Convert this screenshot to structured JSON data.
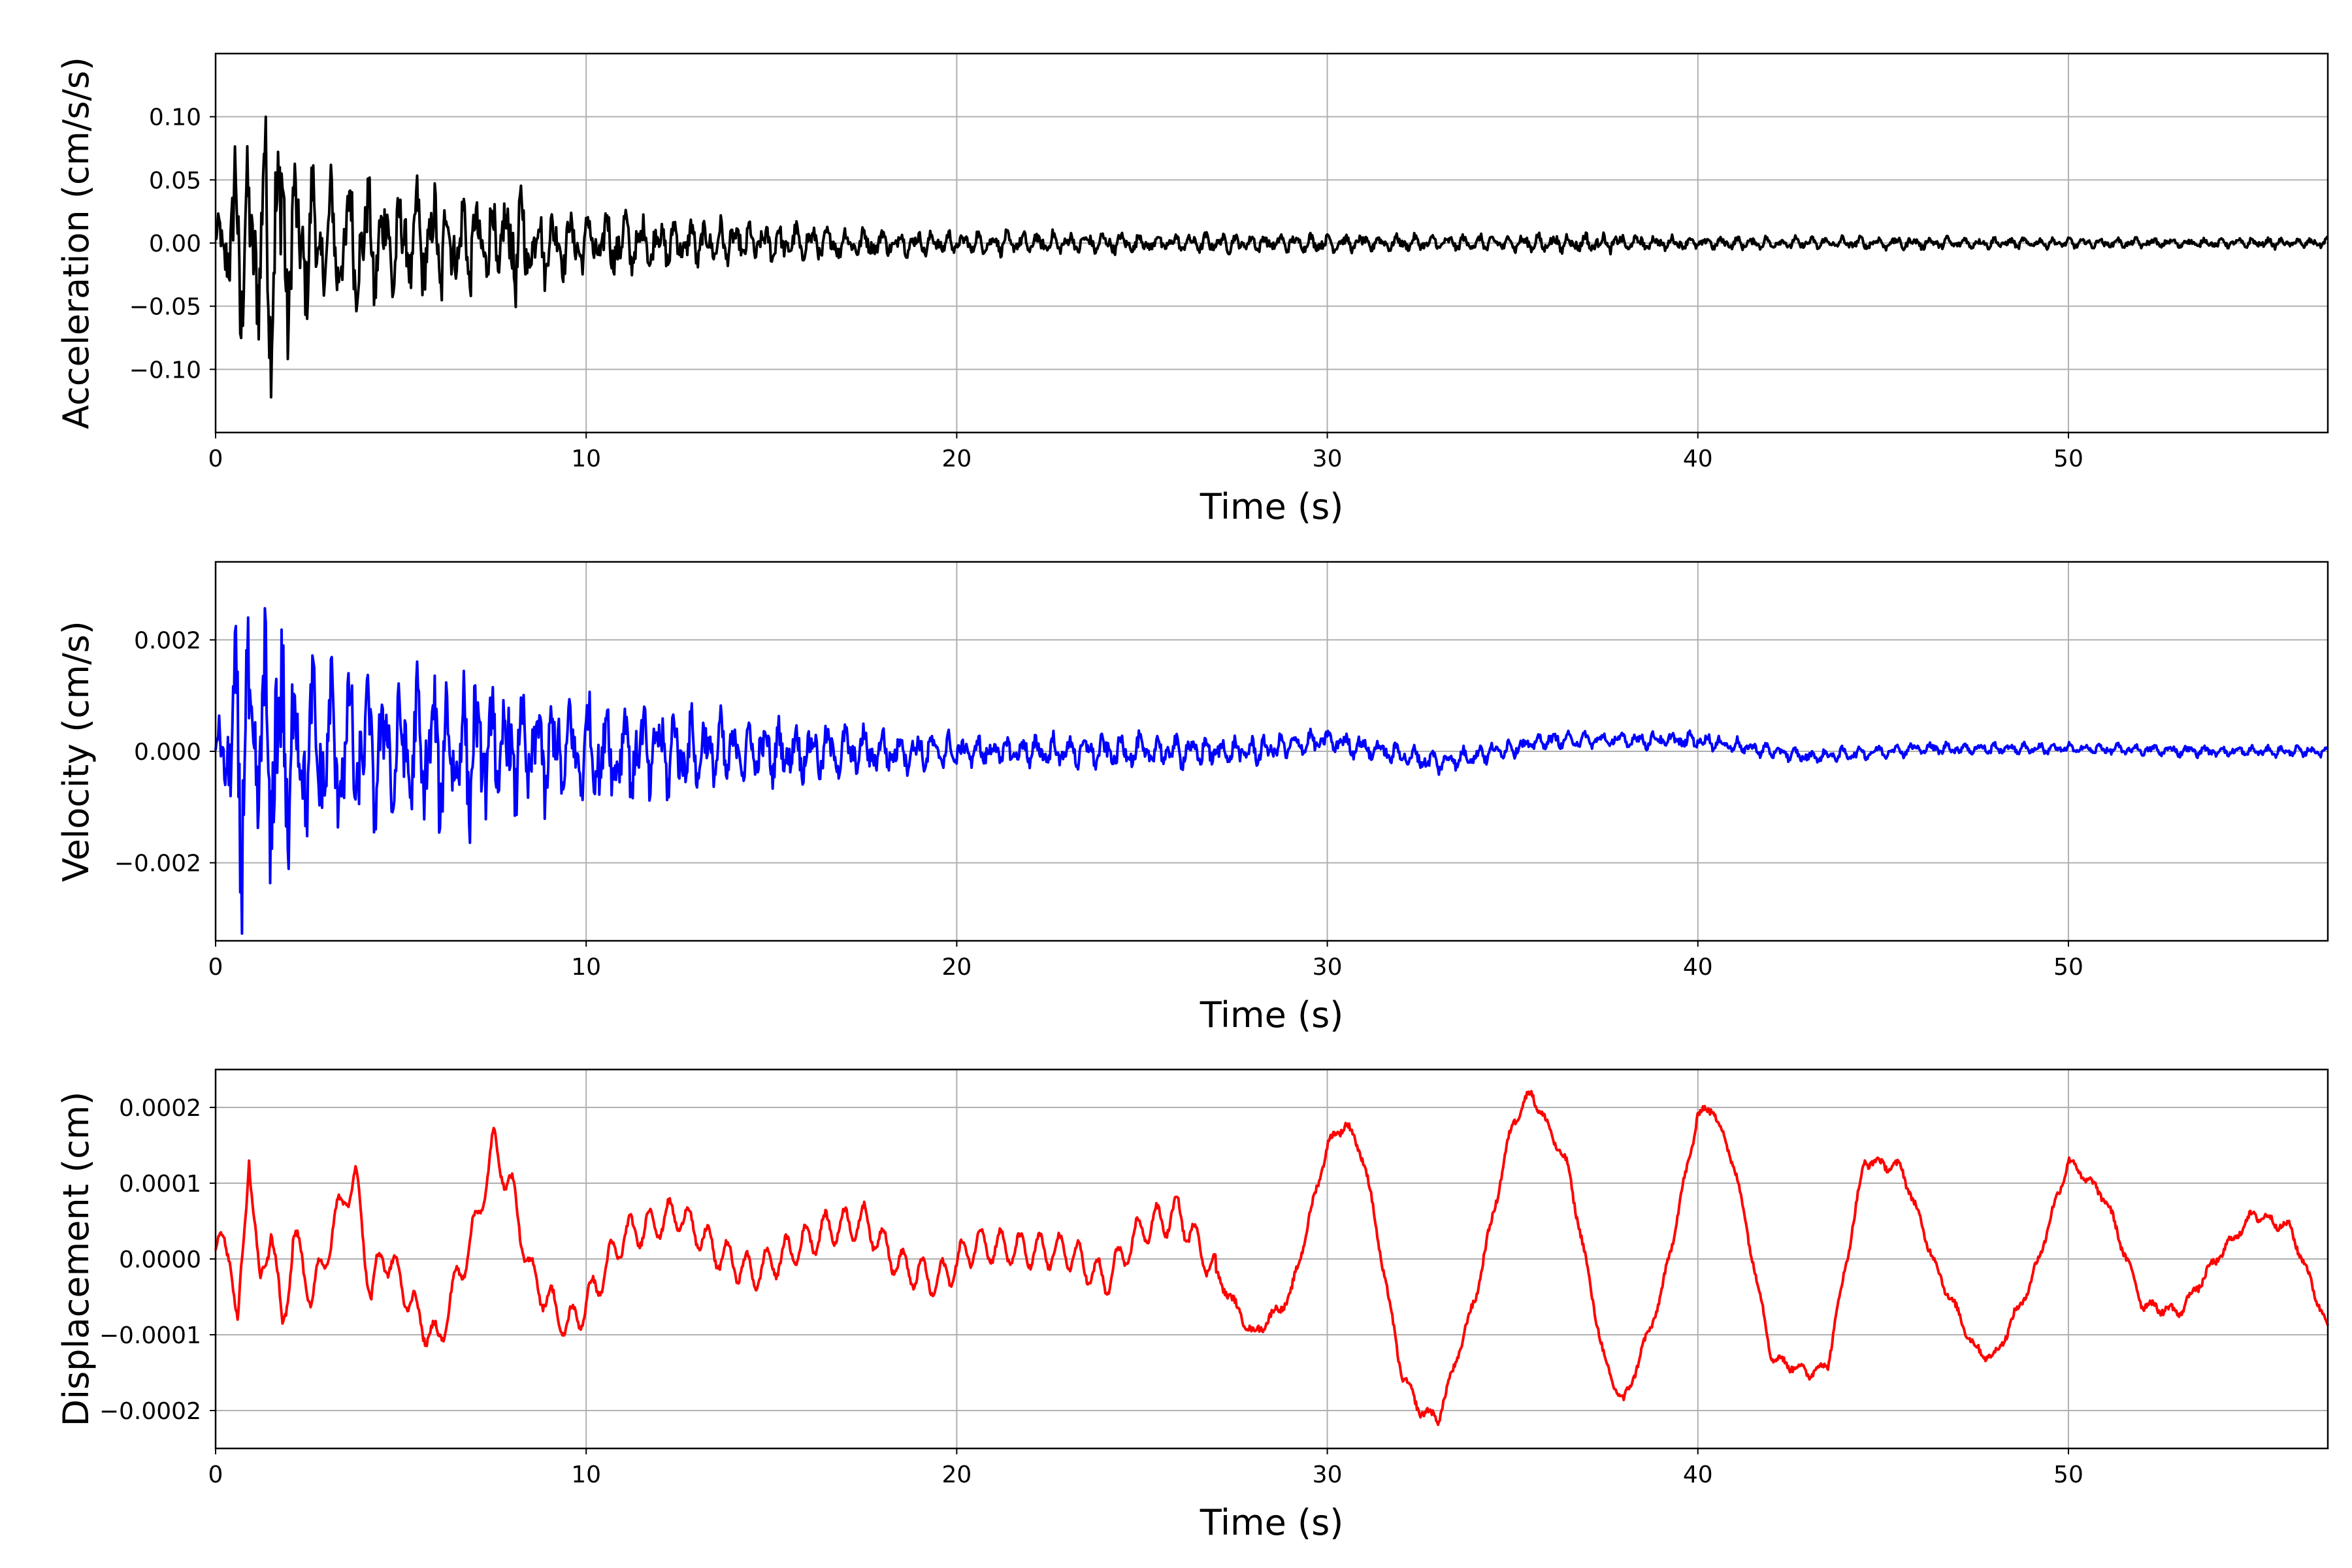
{
  "chart_data": [
    {
      "type": "line",
      "xlabel": "Time (s)",
      "ylabel": "Acceleration (cm/s/s)",
      "xlim": [
        0,
        57
      ],
      "ylim": [
        -0.15,
        0.15
      ],
      "xticks": [
        0,
        10,
        20,
        30,
        40,
        50
      ],
      "xtick_labels": [
        "0",
        "10",
        "20",
        "30",
        "40",
        "50"
      ],
      "yticks": [
        -0.1,
        -0.05,
        0.0,
        0.05,
        0.1
      ],
      "ytick_labels": [
        "−0.10",
        "−0.05",
        "0.00",
        "0.05",
        "0.10"
      ],
      "grid": true,
      "color": "#000000",
      "series": [
        {
          "x": [
            0,
            0.3,
            0.6,
            0.7,
            0.9,
            1.0,
            1.3,
            1.4,
            1.7,
            1.8,
            1.9,
            2.0,
            2.5,
            3.0,
            3.5,
            4.0,
            4.5,
            5.0,
            5.5,
            6.0,
            6.5,
            7.0,
            7.5,
            8.0,
            8.5,
            9.0,
            9.5,
            10.0,
            10.8,
            11.5,
            12.5,
            13.5,
            14.5,
            16.0,
            17.0,
            18.0,
            20.0,
            22.0,
            25.0,
            28.0,
            30.0,
            33.0,
            36.9,
            40.0,
            43.0,
            46.0,
            50.0,
            54.0,
            57.0
          ],
          "env": [
            0.01,
            0.05,
            0.1,
            0.08,
            0.07,
            0.08,
            0.1,
            0.09,
            0.14,
            0.11,
            0.1,
            0.07,
            0.06,
            0.05,
            0.055,
            0.05,
            0.05,
            0.04,
            0.045,
            0.05,
            0.04,
            0.04,
            0.04,
            0.05,
            0.035,
            0.03,
            0.025,
            0.025,
            0.028,
            0.022,
            0.02,
            0.018,
            0.016,
            0.015,
            0.012,
            0.011,
            0.009,
            0.009,
            0.008,
            0.007,
            0.007,
            0.006,
            0.008,
            0.005,
            0.005,
            0.005,
            0.004,
            0.004,
            0.004
          ]
        }
      ]
    },
    {
      "type": "line",
      "xlabel": "Time (s)",
      "ylabel": "Velocity (cm/s)",
      "xlim": [
        0,
        57
      ],
      "ylim": [
        -0.0034,
        0.0034
      ],
      "xticks": [
        0,
        10,
        20,
        30,
        40,
        50
      ],
      "xtick_labels": [
        "0",
        "10",
        "20",
        "30",
        "40",
        "50"
      ],
      "yticks": [
        -0.002,
        0.0,
        0.002
      ],
      "ytick_labels": [
        "−0.002",
        "0.000",
        "0.002"
      ],
      "grid": true,
      "color": "#0000ff",
      "series": [
        {
          "x": [
            0,
            0.4,
            0.7,
            1.0,
            1.3,
            1.7,
            1.9,
            2.5,
            3.0,
            4.0,
            5.0,
            6.0,
            6.5,
            7.5,
            8.5,
            10.0,
            11.0,
            12.5,
            14.0,
            16.0,
            18.0,
            20.0,
            22.0,
            25.0,
            28.0,
            30.0,
            33.0,
            36.0,
            40.0,
            43.0,
            46.0,
            50.0,
            54.0,
            57.0
          ],
          "env": [
            0.0003,
            0.0015,
            0.0027,
            0.0022,
            0.0022,
            0.003,
            0.0024,
            0.0015,
            0.0015,
            0.0014,
            0.0012,
            0.0014,
            0.0013,
            0.0014,
            0.0011,
            0.001,
            0.0009,
            0.0008,
            0.0006,
            0.0005,
            0.0004,
            0.0003,
            0.0003,
            0.0003,
            0.00025,
            0.0002,
            0.0002,
            0.00015,
            0.00015,
            0.00012,
            0.00012,
            0.0001,
            0.0001,
            0.0001
          ],
          "drift": [
            0,
            0,
            0,
            0,
            0,
            0,
            0,
            0,
            0,
            0,
            0,
            0,
            0,
            0,
            0,
            0,
            0,
            0,
            0,
            0,
            0,
            0,
            0,
            0,
            0,
            0.0002,
            -0.0002,
            0.0002,
            0.0002,
            -0.0001,
            5e-05,
            5e-05,
            0,
            0
          ]
        }
      ]
    },
    {
      "type": "line",
      "xlabel": "Time (s)",
      "ylabel": "Displacement (cm)",
      "xlim": [
        0,
        57
      ],
      "ylim": [
        -0.00025,
        0.00025
      ],
      "xticks": [
        0,
        10,
        20,
        30,
        40,
        50
      ],
      "xtick_labels": [
        "0",
        "10",
        "20",
        "30",
        "40",
        "50"
      ],
      "yticks": [
        -0.0002,
        -0.0001,
        0.0,
        0.0001,
        0.0002
      ],
      "ytick_labels": [
        "−0.0002",
        "−0.0001",
        "0.0000",
        "0.0001",
        "0.0002"
      ],
      "grid": true,
      "color": "#ff0000",
      "series": [
        {
          "x": [
            0,
            0.3,
            0.4,
            0.6,
            0.8,
            0.9,
            1.2,
            1.5,
            1.8,
            2.1,
            2.6,
            3.0,
            3.5,
            3.8,
            4.2,
            4.5,
            5.0,
            5.5,
            6.0,
            6.5,
            7.0,
            7.5,
            8.0,
            8.5,
            9.5,
            10.0,
            11.0,
            12.0,
            12.5,
            13.5,
            14.5,
            15.5,
            16.5,
            17.5,
            18.5,
            19.5,
            20.5,
            22.0,
            23.0,
            24.0,
            25.0,
            26.0,
            27.0,
            28.0,
            29.0,
            30.0,
            30.5,
            31.0,
            32.0,
            32.5,
            33.0,
            34.0,
            35.0,
            35.5,
            36.5,
            37.5,
            38.0,
            39.0,
            40.0,
            40.4,
            41.0,
            42.0,
            43.0,
            43.5,
            44.5,
            45.5,
            46.5,
            47.5,
            48.0,
            49.0,
            50.0,
            51.0,
            52.0,
            53.0,
            54.0,
            55.0,
            56.0,
            57.0
          ],
          "y": [
            1e-05,
            2e-05,
            1.5e-05,
            -0.0001,
            5e-05,
            0.00015,
            -5e-05,
            5e-05,
            -0.0001,
            3e-05,
            -5e-05,
            1e-05,
            9e-05,
            0.0001,
            -5e-05,
            1e-05,
            -3e-05,
            -8e-05,
            -0.00011,
            -3e-05,
            4e-05,
            0.00015,
            9e-05,
            -2e-05,
            -9e-05,
            -6e-05,
            3e-05,
            5e-05,
            6e-05,
            1e-05,
            -2e-05,
            1e-05,
            4e-05,
            5e-05,
            -1e-05,
            -3e-05,
            2e-05,
            1e-05,
            1e-05,
            -3e-05,
            4e-05,
            6e-05,
            -2e-05,
            -0.0001,
            -5e-05,
            0.00015,
            0.00018,
            0.00013,
            -0.00015,
            -0.0002,
            -0.00021,
            -5e-05,
            0.00018,
            0.00022,
            0.00012,
            -0.00014,
            -0.00019,
            -5e-05,
            0.00019,
            0.0002,
            0.00012,
            -0.00013,
            -0.00015,
            -0.00014,
            0.00013,
            0.00012,
            -2e-05,
            -0.00012,
            -0.00013,
            -3e-05,
            0.00013,
            8e-05,
            -6e-05,
            -7e-05,
            0.0,
            6e-05,
            4e-05,
            -9e-05
          ]
        }
      ]
    }
  ]
}
